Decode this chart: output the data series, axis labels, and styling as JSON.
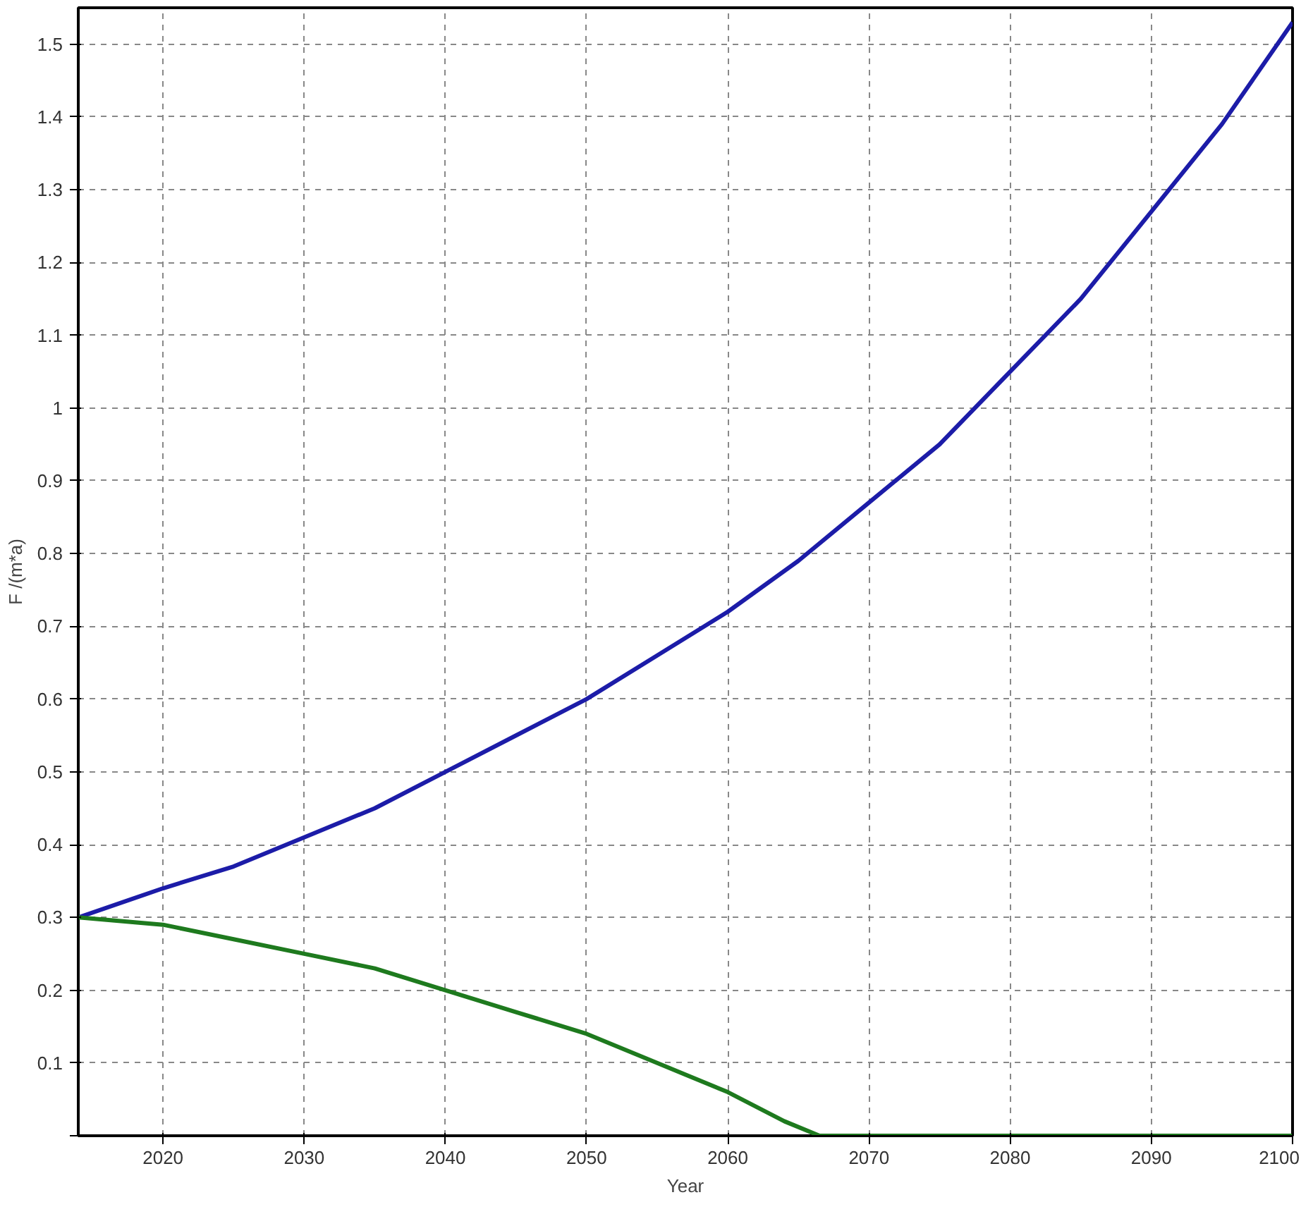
{
  "chart_data": {
    "type": "line",
    "xlabel": "Year",
    "ylabel": "F /(m*a)",
    "xlim": [
      2014,
      2100
    ],
    "ylim": [
      0,
      1.55
    ],
    "xticks": [
      2020,
      2030,
      2040,
      2050,
      2060,
      2070,
      2080,
      2090,
      2100
    ],
    "yticks": [
      {
        "value": 0,
        "label": null
      },
      0.1,
      0.2,
      0.3,
      0.4,
      0.5,
      0.6,
      0.7,
      0.8,
      0.9,
      1,
      1.1,
      1.2,
      1.3,
      1.4,
      1.5
    ],
    "grid": true,
    "marker": "none",
    "line_style": "solid",
    "series": [
      {
        "color": "#1c1ca8",
        "x": [
          2014,
          2020,
          2025,
          2030,
          2035,
          2040,
          2045,
          2050,
          2055,
          2060,
          2065,
          2070,
          2075,
          2080,
          2085,
          2090,
          2095,
          2100
        ],
        "values": [
          0.3,
          0.34,
          0.37,
          0.41,
          0.45,
          0.5,
          0.55,
          0.6,
          0.66,
          0.72,
          0.79,
          0.87,
          0.95,
          1.05,
          1.15,
          1.27,
          1.39,
          1.53
        ]
      },
      {
        "color": "#1e7a1e",
        "x": [
          2014,
          2020,
          2025,
          2030,
          2035,
          2040,
          2045,
          2050,
          2055,
          2060,
          2064,
          2066.5,
          2080,
          2100
        ],
        "values": [
          0.3,
          0.29,
          0.27,
          0.25,
          0.23,
          0.2,
          0.17,
          0.14,
          0.1,
          0.06,
          0.02,
          0,
          0,
          0
        ]
      }
    ]
  }
}
